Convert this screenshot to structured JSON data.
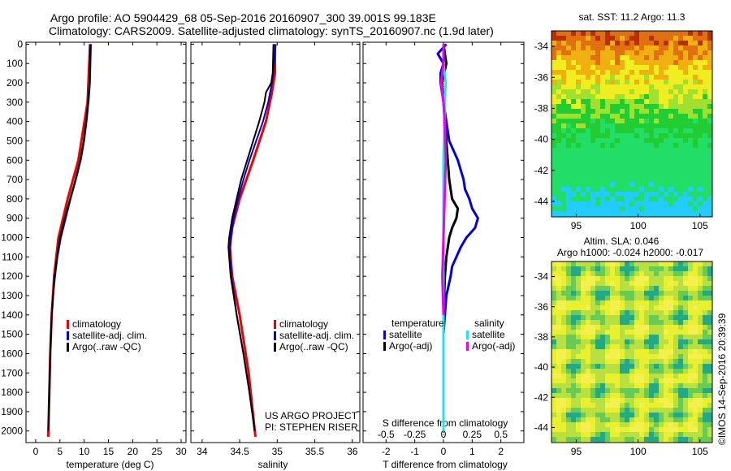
{
  "header": {
    "title_line1": "Argo profile: AO 5904429_68 05-Sep-2016 20160907_300 39.001S 99.183E",
    "title_line2": "Climatology: CARS2009. Satellite-adjusted climatology: synTS_20160907.nc (1.9d later)"
  },
  "colors": {
    "climatology": "#ee0000",
    "satellite": "#0000dd",
    "argo": "#000000",
    "sal_satellite": "#22e5e5",
    "sal_argo": "#ee00ee"
  },
  "chart_data": [
    {
      "type": "line",
      "xlabel": "temperature (deg C)",
      "ylabel": "",
      "xlim": [
        -2,
        31
      ],
      "ylim": [
        2060,
        -10
      ],
      "xticks": [
        "0",
        "5",
        "10",
        "15",
        "20",
        "25",
        "30"
      ],
      "yticks": [
        "0",
        "100",
        "200",
        "300",
        "400",
        "500",
        "600",
        "700",
        "800",
        "900",
        "1000",
        "1100",
        "1200",
        "1300",
        "1400",
        "1500",
        "1600",
        "1700",
        "1800",
        "1900",
        "2000"
      ],
      "legend": [
        "climatology",
        "satellite-adj. clim.",
        "Argo(..raw -QC)"
      ],
      "legend_position": "lower-left",
      "series": [
        {
          "name": "climatology",
          "depth": [
            0,
            300,
            600,
            800,
            1000,
            1200,
            1400,
            1600,
            2030
          ],
          "values": [
            11.2,
            10.7,
            8.8,
            6.6,
            4.7,
            3.8,
            3.3,
            3.0,
            2.6
          ]
        },
        {
          "name": "satellite-adj. clim.",
          "depth": [
            0,
            100,
            200,
            300,
            400,
            500,
            600,
            700,
            800,
            900,
            1000,
            1100,
            1200,
            1300,
            1400,
            1600,
            1800,
            2000
          ],
          "values": [
            11.4,
            11.3,
            11.2,
            10.9,
            10.5,
            10.0,
            9.3,
            8.3,
            7.2,
            6.2,
            5.2,
            4.5,
            4.0,
            3.6,
            3.3,
            3.0,
            2.8,
            2.6
          ]
        },
        {
          "name": "Argo(..raw -QC)",
          "depth": [
            0,
            100,
            200,
            300,
            400,
            500,
            600,
            700,
            800,
            900,
            1000,
            1100,
            1200,
            1300,
            1400,
            1600,
            1800,
            2000
          ],
          "values": [
            11.3,
            11.2,
            11.1,
            10.8,
            10.4,
            9.9,
            9.2,
            8.2,
            7.1,
            6.0,
            5.0,
            4.4,
            3.9,
            3.6,
            3.3,
            3.0,
            2.8,
            2.6
          ]
        }
      ]
    },
    {
      "type": "line",
      "xlabel": "salinity",
      "ylabel": "",
      "xlim": [
        33.85,
        36.1
      ],
      "ylim": [
        2060,
        -10
      ],
      "xticks": [
        "34",
        "34.5",
        "35",
        "35.5",
        "36"
      ],
      "legend": [
        "climatology",
        "satellite-adj. clim.",
        "Argo(..raw -QC)"
      ],
      "legend_position": "lower-right",
      "annotation": [
        "US ARGO PROJECT",
        "PI: STEPHEN RISER"
      ],
      "series": [
        {
          "name": "climatology",
          "depth": [
            0,
            150,
            250,
            400,
            600,
            800,
            950,
            1050,
            1200,
            1400,
            1700,
            2030
          ],
          "values": [
            34.97,
            34.97,
            34.93,
            34.85,
            34.68,
            34.5,
            34.4,
            34.37,
            34.4,
            34.5,
            34.62,
            34.71
          ]
        },
        {
          "name": "satellite-adj. clim.",
          "depth": [
            0,
            100,
            200,
            300,
            400,
            500,
            600,
            700,
            800,
            900,
            1000,
            1100,
            1200,
            1400,
            1600,
            1800,
            2000
          ],
          "values": [
            34.98,
            34.96,
            34.93,
            34.88,
            34.81,
            34.72,
            34.63,
            34.55,
            34.48,
            34.42,
            34.38,
            34.37,
            34.39,
            34.46,
            34.55,
            34.63,
            34.7
          ]
        },
        {
          "name": "Argo(..raw -QC)",
          "depth": [
            0,
            150,
            200,
            250,
            300,
            400,
            500,
            600,
            700,
            800,
            900,
            1000,
            1050,
            1100,
            1200,
            1400,
            1600,
            1800,
            2000
          ],
          "values": [
            34.95,
            34.94,
            34.92,
            34.85,
            34.83,
            34.76,
            34.68,
            34.6,
            34.52,
            34.46,
            34.4,
            34.36,
            34.35,
            34.36,
            34.38,
            34.46,
            34.55,
            34.63,
            34.7
          ]
        }
      ]
    },
    {
      "type": "line",
      "xlabel": "T difference from climatology",
      "xlabel_top": "S difference from climatology",
      "xlim": [
        -2.8,
        2.8
      ],
      "ylim": [
        2060,
        -10
      ],
      "xticks": [
        "-2",
        "-1",
        "0",
        "1",
        "2"
      ],
      "xticks_top": [
        "-0.5",
        "-0.25",
        "0",
        "0.25",
        "0.5"
      ],
      "legend_titles": [
        "temperature",
        "salinity"
      ],
      "legend": [
        "satellite",
        "Argo(-adj)",
        "satellite",
        "Argo(-adj)"
      ],
      "series": [
        {
          "name": "satellite",
          "quantity": "temperature",
          "depth": [
            0,
            50,
            100,
            150,
            200,
            300,
            400,
            500,
            600,
            700,
            750,
            800,
            850,
            900,
            950,
            1000,
            1050,
            1100,
            1150,
            1200,
            1300,
            1500,
            2000
          ],
          "values": [
            0.1,
            -0.2,
            0.0,
            -0.1,
            -0.1,
            0.0,
            0.1,
            0.2,
            0.5,
            0.7,
            0.75,
            0.9,
            1.0,
            1.2,
            1.1,
            0.8,
            0.6,
            0.45,
            0.3,
            0.25,
            0.1,
            0.0,
            0.0
          ]
        },
        {
          "name": "Argo(-adj)",
          "quantity": "temperature",
          "depth": [
            0,
            100,
            200,
            300,
            400,
            500,
            600,
            700,
            800,
            850,
            900,
            950,
            1000,
            1100,
            1200,
            1400,
            2000
          ],
          "values": [
            0.0,
            0.1,
            -0.05,
            0.0,
            0.05,
            0.1,
            0.15,
            0.2,
            0.3,
            0.5,
            0.45,
            0.3,
            0.2,
            0.1,
            0.05,
            0.0,
            0.0
          ]
        },
        {
          "name": "satellite",
          "quantity": "salinity",
          "depth": [
            0,
            100,
            200,
            300,
            400,
            600,
            1000,
            1500,
            2000
          ],
          "values": [
            0.0,
            0.0,
            0.02,
            0.01,
            0.01,
            0.0,
            0.0,
            0.0,
            0.0
          ]
        },
        {
          "name": "Argo(-adj)",
          "quantity": "salinity",
          "depth": [
            0,
            100,
            200,
            300,
            400,
            600,
            800,
            1000,
            1200,
            1400
          ],
          "values": [
            0.0,
            0.0,
            -0.02,
            0.0,
            0.01,
            0.02,
            0.01,
            0.0,
            -0.01,
            0.0
          ]
        }
      ]
    },
    {
      "type": "heatmap",
      "title": "sat. SST: 11.2  Argo: 11.3",
      "xlim": [
        93,
        106
      ],
      "ylim": [
        -45,
        -33
      ],
      "xticks": [
        "95",
        "100",
        "105"
      ],
      "yticks": [
        "-34",
        "-36",
        "-38",
        "-40",
        "-42",
        "-44"
      ]
    },
    {
      "type": "heatmap",
      "title_line1": "Altim. SLA: 0.046",
      "title_line2": "Argo h1000: -0.024  h2000: -0.017",
      "xlim": [
        93,
        106
      ],
      "ylim": [
        -45,
        -33
      ],
      "xticks": [
        "95",
        "100",
        "105"
      ],
      "yticks": [
        "-34",
        "-36",
        "-38",
        "-40",
        "-42",
        "-44"
      ]
    }
  ],
  "side_label": "©IMOS 14-Sep-2016 20:39:39"
}
